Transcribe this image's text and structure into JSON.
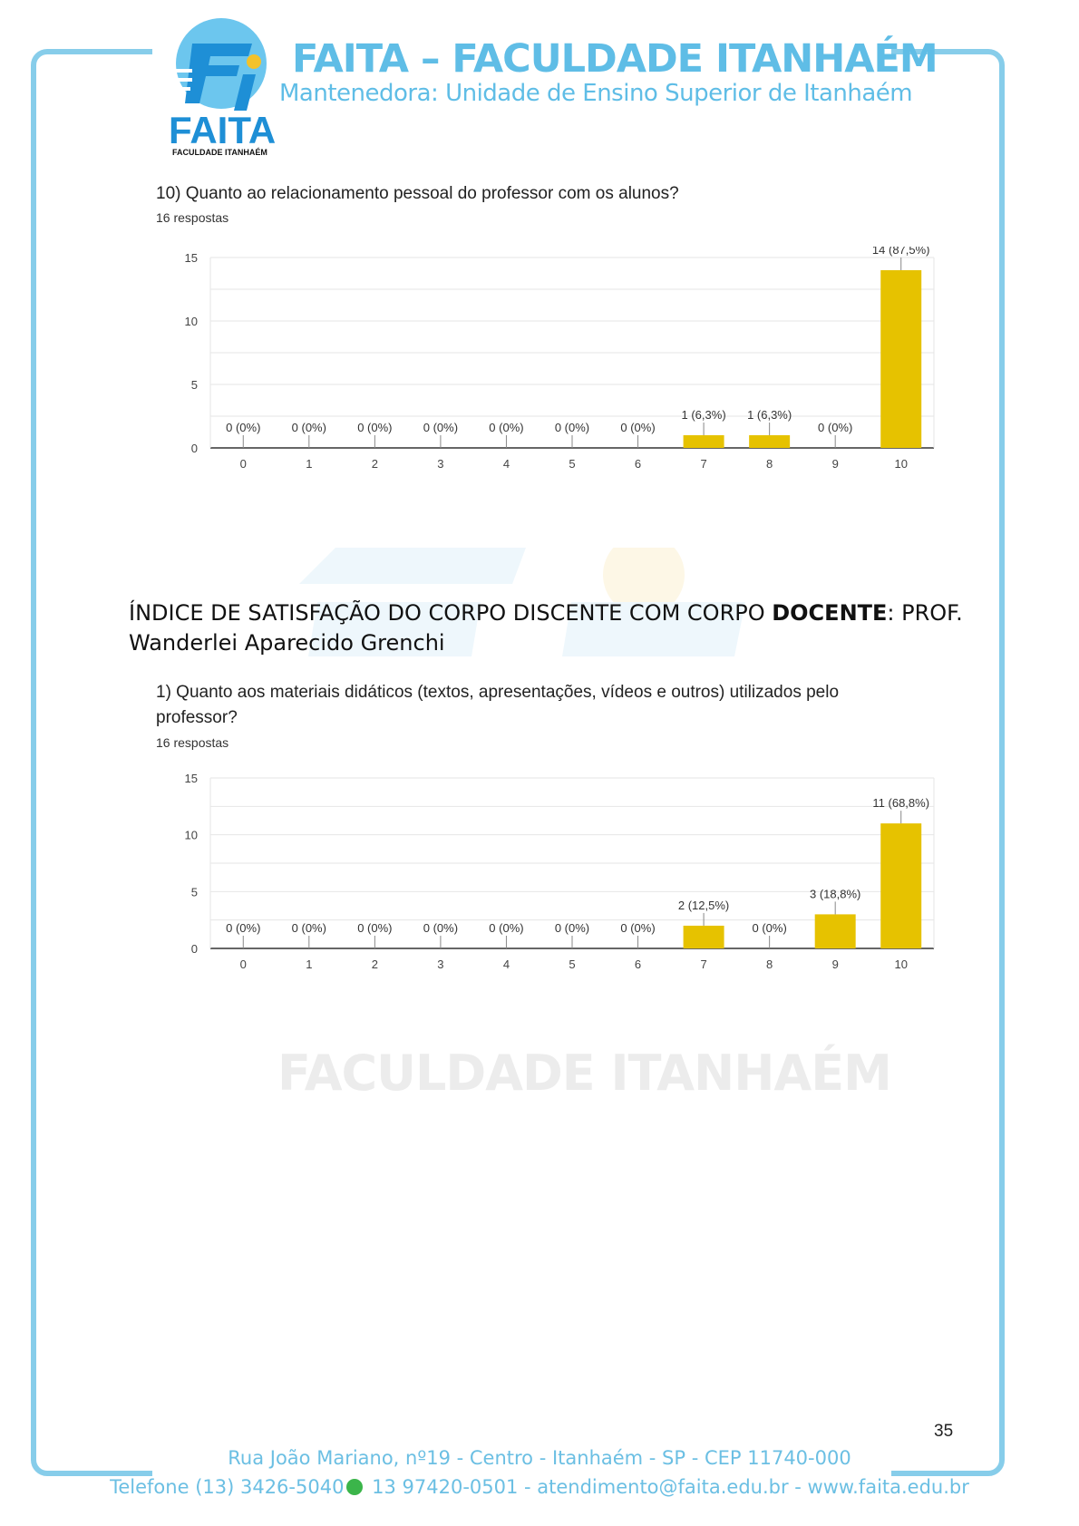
{
  "header": {
    "title": "FAITA – FACULDADE ITANHAÉM",
    "subtitle": "Mantenedora: Unidade de Ensino Superior de Itanhaém",
    "logo_text": "FAITA",
    "logo_subtext": "FACULDADE ITANHAÉM"
  },
  "question10": {
    "title": "10) Quanto ao relacionamento pessoal do professor com os alunos?",
    "responses": "16 respostas"
  },
  "section": {
    "title_before": "ÍNDICE DE SATISFAÇÃO DO CORPO DISCENTE COM CORPO ",
    "title_bold": "DOCENTE",
    "title_after": ":  PROF. Wanderlei Aparecido Grenchi"
  },
  "question1": {
    "title": "1) Quanto aos materiais didáticos (textos, apresentações, vídeos e outros) utilizados pelo professor?",
    "responses": "16 respostas"
  },
  "watermark": "FACULDADE ITANHAÉM",
  "page_number": "35",
  "footer": {
    "address": "Rua João Mariano, nº19 - Centro - Itanhaém - SP - CEP 11740-000",
    "contact_phone": "Telefone (13) 3426-5040",
    "contact_rest": " 13 97420-0501 - atendimento@faita.edu.br - www.faita.edu.br"
  },
  "colors": {
    "bar": "#e6c200",
    "frame": "#87cdea",
    "brand": "#5fbde6"
  },
  "chart_data": [
    {
      "type": "bar",
      "categories": [
        "0",
        "1",
        "2",
        "3",
        "4",
        "5",
        "6",
        "7",
        "8",
        "9",
        "10"
      ],
      "values": [
        0,
        0,
        0,
        0,
        0,
        0,
        0,
        1,
        1,
        0,
        14
      ],
      "data_labels": [
        "0 (0%)",
        "0 (0%)",
        "0 (0%)",
        "0 (0%)",
        "0 (0%)",
        "0 (0%)",
        "0 (0%)",
        "1 (6,3%)",
        "1 (6,3%)",
        "0 (0%)",
        "14 (87,5%)"
      ],
      "yticks": [
        "0",
        "5",
        "10",
        "15"
      ],
      "ylim": [
        0,
        15
      ],
      "grid": true
    },
    {
      "type": "bar",
      "categories": [
        "0",
        "1",
        "2",
        "3",
        "4",
        "5",
        "6",
        "7",
        "8",
        "9",
        "10"
      ],
      "values": [
        0,
        0,
        0,
        0,
        0,
        0,
        0,
        2,
        0,
        3,
        11
      ],
      "data_labels": [
        "0 (0%)",
        "0 (0%)",
        "0 (0%)",
        "0 (0%)",
        "0 (0%)",
        "0 (0%)",
        "0 (0%)",
        "2 (12,5%)",
        "0 (0%)",
        "3 (18,8%)",
        "11 (68,8%)"
      ],
      "yticks": [
        "0",
        "5",
        "10",
        "15"
      ],
      "ylim": [
        0,
        15
      ],
      "grid": true
    }
  ]
}
